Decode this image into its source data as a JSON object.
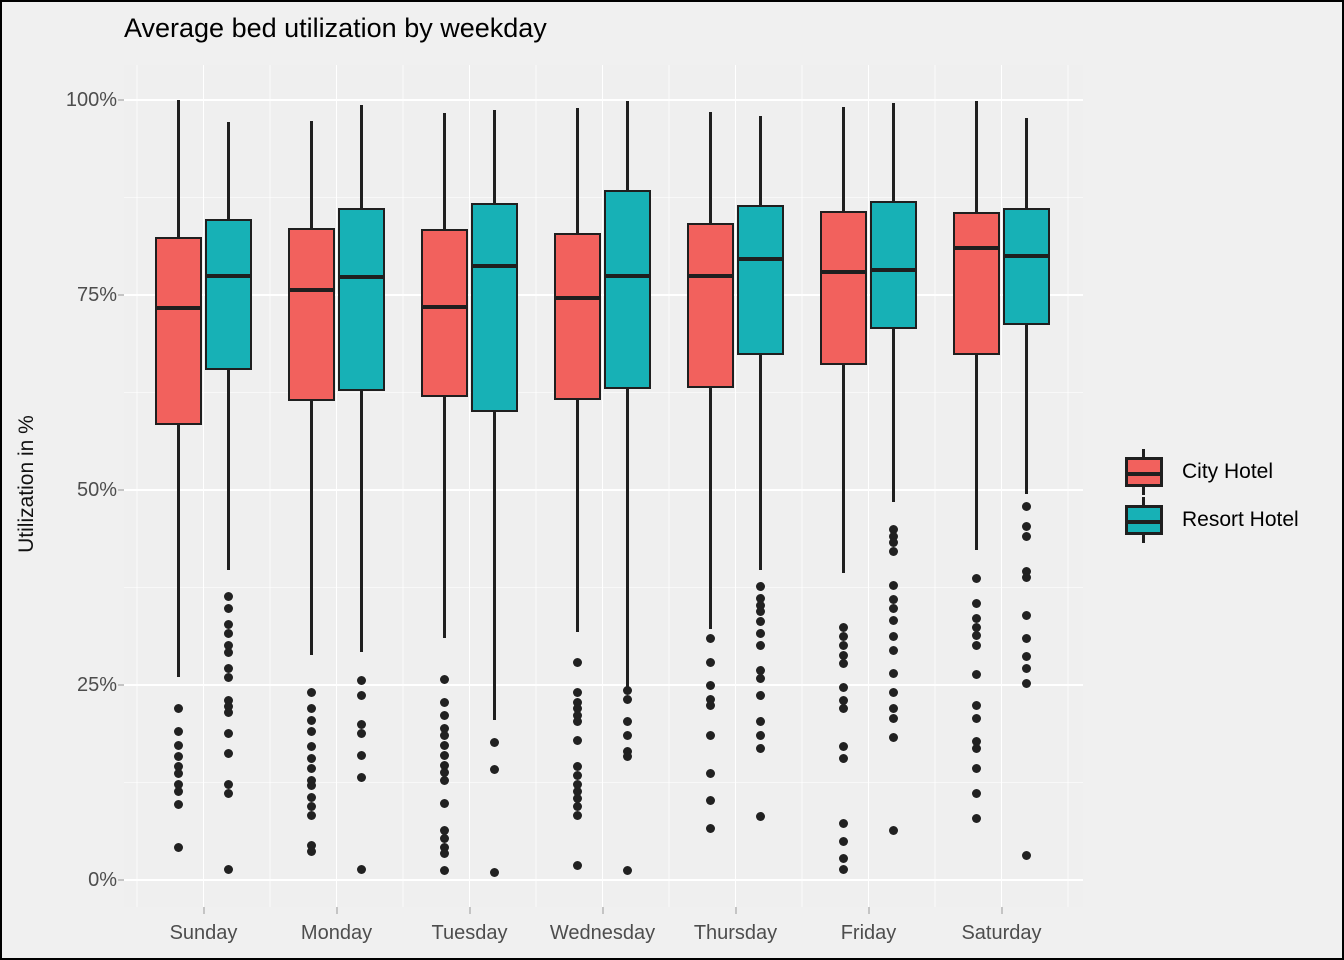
{
  "title": "Average bed utilization by weekday",
  "y_axis": {
    "label": "Utilization in %",
    "tick_labels": [
      "0%",
      "25%",
      "50%",
      "75%",
      "100%"
    ],
    "tick_values": [
      0,
      25,
      50,
      75,
      100
    ]
  },
  "x_axis": {
    "categories": [
      "Sunday",
      "Monday",
      "Tuesday",
      "Wednesday",
      "Thursday",
      "Friday",
      "Saturday"
    ]
  },
  "legend": {
    "items": [
      {
        "label": "City Hotel",
        "color": "#F2615D"
      },
      {
        "label": "Resort Hotel",
        "color": "#17B1B6"
      }
    ]
  },
  "colors": {
    "background": "#F0F0F0",
    "panel": "#EFEFEF",
    "grid_major": "#FFFFFF",
    "stroke": "#1F1F1F",
    "city_fill": "#F2615D",
    "resort_fill": "#17B1B6",
    "tick_text": "#4D4D4D"
  },
  "chart_data": {
    "type": "boxplot",
    "title": "Average bed utilization by weekday",
    "xlabel": "",
    "ylabel": "Utilization in %",
    "ylim": [
      0,
      100
    ],
    "grid": true,
    "legend_position": "right",
    "categories": [
      "Sunday",
      "Monday",
      "Tuesday",
      "Wednesday",
      "Thursday",
      "Friday",
      "Saturday"
    ],
    "series": [
      {
        "name": "City Hotel",
        "color": "#F2615D",
        "boxes": [
          {
            "low": 26.0,
            "q1": 58.3,
            "median": 73.3,
            "q3": 82.4,
            "high": 100.0,
            "outliers": [
              22.0,
              19.0,
              17.2,
              15.8,
              14.5,
              13.6,
              12.3,
              11.3,
              9.7,
              4.2
            ]
          },
          {
            "low": 28.8,
            "q1": 61.4,
            "median": 75.6,
            "q3": 83.6,
            "high": 97.3,
            "outliers": [
              24.1,
              22.0,
              20.5,
              19.0,
              17.1,
              15.6,
              14.3,
              12.8,
              12.1,
              10.6,
              9.4,
              8.3,
              4.4,
              3.6
            ]
          },
          {
            "low": 31.0,
            "q1": 61.9,
            "median": 73.5,
            "q3": 83.5,
            "high": 98.3,
            "outliers": [
              25.7,
              22.8,
              21.1,
              19.4,
              18.5,
              17.3,
              16.0,
              14.7,
              13.8,
              12.7,
              9.8,
              6.4,
              5.3,
              4.2,
              3.4,
              1.2
            ]
          },
          {
            "low": 31.8,
            "q1": 61.6,
            "median": 74.6,
            "q3": 82.9,
            "high": 99.0,
            "outliers": [
              27.9,
              24.1,
              22.8,
              22.0,
              21.1,
              20.3,
              17.9,
              14.5,
              13.4,
              12.3,
              11.3,
              10.4,
              9.4,
              8.3,
              1.9
            ]
          },
          {
            "low": 32.2,
            "q1": 63.1,
            "median": 77.5,
            "q3": 84.2,
            "high": 98.5,
            "outliers": [
              30.9,
              27.9,
              25.0,
              23.2,
              22.4,
              18.5,
              13.6,
              10.2,
              6.6
            ]
          },
          {
            "low": 39.3,
            "q1": 66.0,
            "median": 78.0,
            "q3": 85.8,
            "high": 99.1,
            "outliers": [
              32.4,
              31.2,
              30.1,
              28.8,
              27.7,
              24.7,
              23.0,
              22.0,
              17.1,
              15.6,
              7.2,
              4.9,
              2.7,
              1.4
            ]
          },
          {
            "low": 42.3,
            "q1": 67.3,
            "median": 81.0,
            "q3": 85.6,
            "high": 99.9,
            "outliers": [
              38.6,
              35.4,
              33.5,
              32.4,
              31.4,
              30.1,
              26.4,
              22.4,
              20.7,
              17.7,
              16.8,
              14.3,
              11.1,
              7.9
            ]
          }
        ]
      },
      {
        "name": "Resort Hotel",
        "color": "#17B1B6",
        "boxes": [
          {
            "low": 39.7,
            "q1": 65.4,
            "median": 77.4,
            "q3": 84.7,
            "high": 97.2,
            "outliers": [
              36.3,
              34.8,
              32.7,
              31.6,
              30.1,
              29.2,
              27.1,
              26.0,
              23.0,
              22.2,
              21.5,
              18.8,
              16.2,
              12.3,
              11.1,
              1.4
            ]
          },
          {
            "low": 29.2,
            "q1": 62.7,
            "median": 77.3,
            "q3": 86.1,
            "high": 99.3,
            "outliers": [
              25.6,
              23.7,
              20.0,
              18.8,
              16.0,
              13.2,
              1.4
            ]
          },
          {
            "low": 20.5,
            "q1": 60.0,
            "median": 78.7,
            "q3": 86.8,
            "high": 98.7,
            "outliers": [
              17.6,
              14.2,
              0.9
            ]
          },
          {
            "low": 24.7,
            "q1": 62.9,
            "median": 77.4,
            "q3": 88.4,
            "high": 99.9,
            "outliers": [
              24.3,
              23.2,
              20.3,
              18.5,
              16.5,
              15.8,
              1.2
            ]
          },
          {
            "low": 39.7,
            "q1": 67.3,
            "median": 79.6,
            "q3": 86.5,
            "high": 98.0,
            "outliers": [
              37.6,
              36.1,
              35.2,
              34.4,
              33.1,
              31.6,
              30.1,
              26.9,
              25.8,
              23.7,
              20.3,
              18.5,
              16.8,
              8.1
            ]
          },
          {
            "low": 48.4,
            "q1": 70.6,
            "median": 78.2,
            "q3": 87.1,
            "high": 99.6,
            "outliers": [
              45.0,
              44.0,
              43.3,
              42.1,
              37.8,
              36.0,
              34.8,
              33.3,
              31.2,
              29.4,
              26.5,
              24.1,
              22.0,
              20.7,
              18.3,
              6.4
            ]
          },
          {
            "low": 49.5,
            "q1": 71.2,
            "median": 80.0,
            "q3": 86.2,
            "high": 97.7,
            "outliers": [
              47.9,
              45.3,
              44.0,
              39.5,
              38.8,
              33.9,
              30.9,
              28.6,
              27.1,
              25.2,
              3.2
            ]
          }
        ]
      }
    ]
  }
}
